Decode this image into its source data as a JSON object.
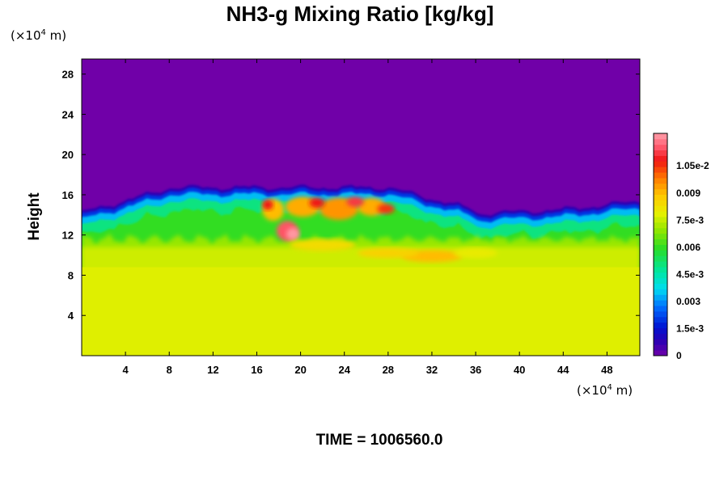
{
  "chart_data": {
    "type": "heatmap",
    "title": "NH3-g Mixing Ratio [kg/kg]",
    "ylabel": "Height",
    "x_unit": {
      "prefix": "(×10",
      "exp": "4",
      "suffix": " m)"
    },
    "y_unit": {
      "prefix": "(×10",
      "exp": "4",
      "suffix": " m)"
    },
    "xlim": [
      0,
      51
    ],
    "ylim": [
      0,
      29.5
    ],
    "x_ticks": [
      4,
      8,
      12,
      16,
      20,
      24,
      28,
      32,
      36,
      40,
      44,
      48
    ],
    "y_ticks": [
      4,
      8,
      12,
      16,
      20,
      24,
      28
    ],
    "colorbar": {
      "range": [
        0,
        0.0123
      ],
      "ticks": [
        {
          "value": 0,
          "label": "0"
        },
        {
          "value": 0.0015,
          "label": "1.5e-3"
        },
        {
          "value": 0.003,
          "label": "0.003"
        },
        {
          "value": 0.0045,
          "label": "4.5e-3"
        },
        {
          "value": 0.006,
          "label": "0.006"
        },
        {
          "value": 0.0075,
          "label": "7.5e-3"
        },
        {
          "value": 0.009,
          "label": "0.009"
        },
        {
          "value": 0.0105,
          "label": "1.05e-2"
        }
      ]
    },
    "field_description": {
      "lower_layer_value": 0.0078,
      "lower_layer_top_height": 8.8,
      "transition_layer": [
        8.8,
        10.8
      ],
      "upper_region_value": 0,
      "cloud_top_height_range": [
        13.5,
        16.8
      ],
      "peak_value": 0.0123
    }
  },
  "time_label": "TIME = 1006560.0"
}
